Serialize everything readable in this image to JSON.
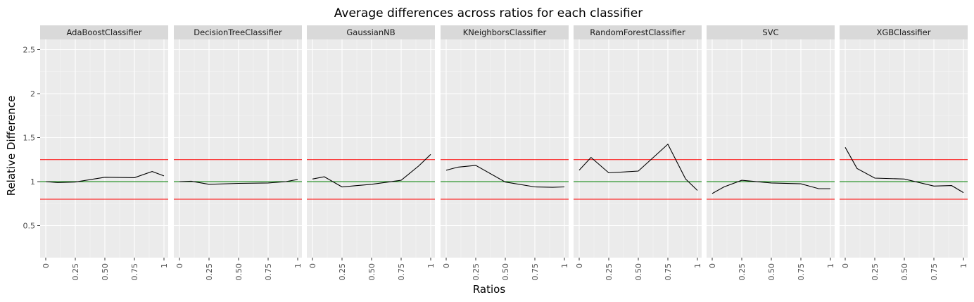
{
  "chart_data": {
    "type": "line",
    "title": "Average differences across ratios for each classifier",
    "xlabel": "Ratios",
    "ylabel": "Relative Difference",
    "xlim": [
      0,
      1
    ],
    "ylim": [
      0.15,
      2.6
    ],
    "x_ticks": [
      0,
      0.25,
      0.5,
      0.75,
      1
    ],
    "x_tick_labels": [
      "0",
      "0.25",
      "0.50",
      "0.75",
      "1"
    ],
    "y_ticks": [
      0.5,
      1,
      1.5,
      2,
      2.5
    ],
    "y_tick_labels": [
      "0.5",
      "1",
      "1.5",
      "2",
      "2.5"
    ],
    "grid": true,
    "panel_background": "#ebebeb",
    "strip_background": "#d9d9d9",
    "line_color": "#000000",
    "reference_lines": [
      {
        "y": 1.25,
        "color": "#ff0000"
      },
      {
        "y": 1.0,
        "color": "#008000"
      },
      {
        "y": 0.8,
        "color": "#ff0000"
      }
    ],
    "facets": [
      {
        "label": "AdaBoostClassifier",
        "x": [
          0,
          0.1,
          0.25,
          0.5,
          0.75,
          0.9,
          1
        ],
        "y": [
          1.0,
          0.99,
          0.995,
          1.05,
          1.045,
          1.115,
          1.065
        ]
      },
      {
        "label": "DecisionTreeClassifier",
        "x": [
          0,
          0.1,
          0.25,
          0.5,
          0.75,
          0.9,
          1
        ],
        "y": [
          1.0,
          1.005,
          0.97,
          0.98,
          0.985,
          1.0,
          1.025
        ]
      },
      {
        "label": "GaussianNB",
        "x": [
          0,
          0.1,
          0.25,
          0.5,
          0.75,
          0.9,
          1
        ],
        "y": [
          1.03,
          1.055,
          0.94,
          0.97,
          1.015,
          1.18,
          1.31
        ]
      },
      {
        "label": "KNeighborsClassifier",
        "x": [
          0,
          0.1,
          0.25,
          0.5,
          0.75,
          0.9,
          1
        ],
        "y": [
          1.13,
          1.165,
          1.185,
          0.995,
          0.94,
          0.935,
          0.94
        ]
      },
      {
        "label": "RandomForestClassifier",
        "x": [
          0,
          0.1,
          0.25,
          0.5,
          0.75,
          0.9,
          1
        ],
        "y": [
          1.13,
          1.275,
          1.1,
          1.12,
          1.425,
          1.03,
          0.9
        ]
      },
      {
        "label": "SVC",
        "x": [
          0,
          0.1,
          0.25,
          0.5,
          0.75,
          0.9,
          1
        ],
        "y": [
          0.865,
          0.94,
          1.015,
          0.985,
          0.975,
          0.92,
          0.92
        ]
      },
      {
        "label": "XGBClassifier",
        "x": [
          0,
          0.1,
          0.25,
          0.5,
          0.75,
          0.9,
          1
        ],
        "y": [
          1.39,
          1.15,
          1.04,
          1.03,
          0.95,
          0.955,
          0.875
        ]
      }
    ]
  }
}
